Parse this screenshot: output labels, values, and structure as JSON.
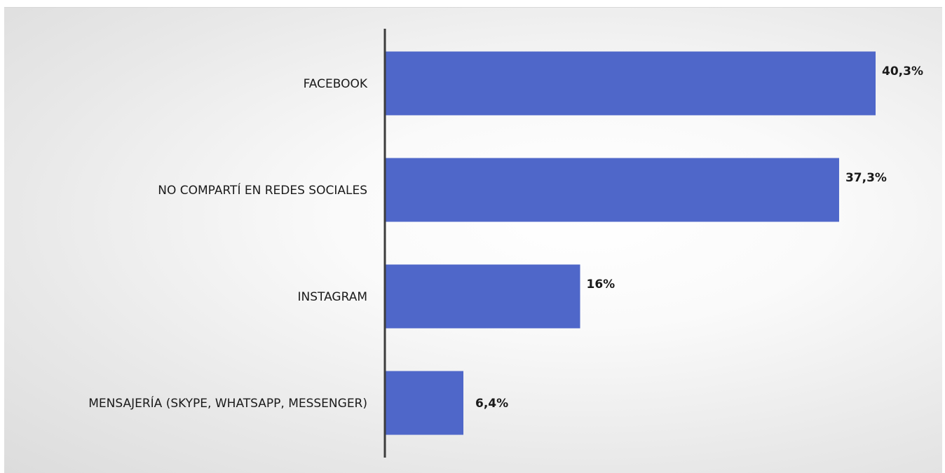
{
  "chart_data": {
    "type": "bar",
    "orientation": "horizontal",
    "categories": [
      "FACEBOOK",
      "NO COMPARTÍ EN REDES SOCIALES",
      "INSTAGRAM",
      "MENSAJERÍA (SKYPE, WHATSAPP, MESSENGER)"
    ],
    "values": [
      40.3,
      37.3,
      16,
      6.4
    ],
    "value_labels": [
      "40,3%",
      "37,3%",
      "16%",
      "6,4%"
    ],
    "title": "",
    "xlabel": "",
    "ylabel": "",
    "xlim": [
      0,
      40.3
    ],
    "grid": false,
    "legend": "none",
    "colors": {
      "bar": "#4f67c9",
      "axis": "#3c3c3c",
      "text": "#1a1a1a"
    }
  }
}
